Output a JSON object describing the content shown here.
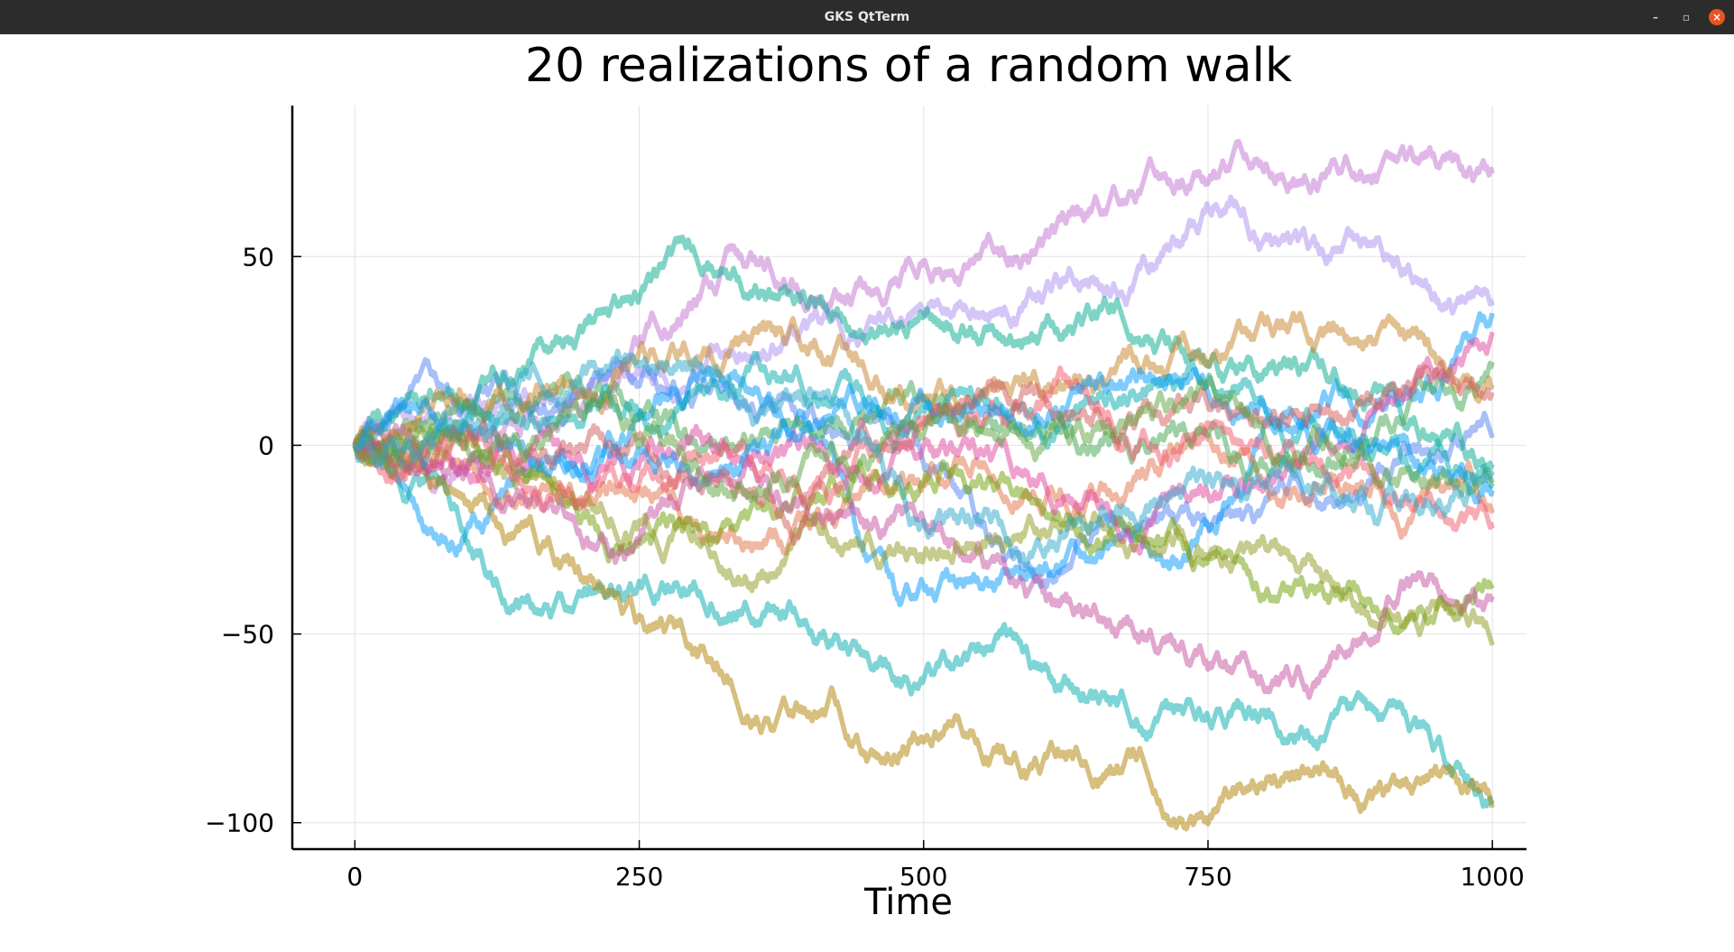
{
  "window": {
    "title": "GKS QtTerm",
    "controls": {
      "minimize": "–",
      "maximize": "▫",
      "close": "×"
    }
  },
  "chart_data": {
    "type": "line",
    "title": "20 realizations of a random walk",
    "xlabel": "Time",
    "ylabel": "",
    "xlim": [
      -55,
      1030
    ],
    "ylim": [
      -107,
      90
    ],
    "xticks": [
      0,
      250,
      500,
      750,
      1000
    ],
    "xtick_labels": [
      "0",
      "250",
      "500",
      "750",
      "1000"
    ],
    "yticks": [
      -100,
      -50,
      0,
      50
    ],
    "ytick_labels": [
      "−100",
      "−50",
      "0",
      "50"
    ],
    "grid": true,
    "legend": "none",
    "n_steps": 1000,
    "series": [
      {
        "color": "#c271d2",
        "endpoints": [
          [
            0,
            0
          ],
          [
            100,
            -5
          ],
          [
            200,
            10
          ],
          [
            330,
            52
          ],
          [
            370,
            42
          ],
          [
            470,
            42
          ],
          [
            500,
            48
          ],
          [
            560,
            53
          ],
          [
            700,
            75
          ],
          [
            900,
            72
          ],
          [
            1000,
            72
          ]
        ]
      },
      {
        "color": "#ac8eef",
        "endpoints": [
          [
            0,
            0
          ],
          [
            120,
            8
          ],
          [
            250,
            20
          ],
          [
            380,
            28
          ],
          [
            470,
            35
          ],
          [
            550,
            35
          ],
          [
            700,
            48
          ],
          [
            780,
            62
          ],
          [
            850,
            52
          ],
          [
            900,
            55
          ],
          [
            1000,
            37
          ]
        ]
      },
      {
        "color": "#4f82f0",
        "endpoints": [
          [
            0,
            0
          ],
          [
            50,
            15
          ],
          [
            150,
            10
          ],
          [
            260,
            20
          ],
          [
            400,
            10
          ],
          [
            500,
            -5
          ],
          [
            600,
            -35
          ],
          [
            700,
            -20
          ],
          [
            800,
            -15
          ],
          [
            900,
            -5
          ],
          [
            1000,
            2
          ]
        ]
      },
      {
        "color": "#009af9",
        "endpoints": [
          [
            0,
            0
          ],
          [
            60,
            -22
          ],
          [
            150,
            -8
          ],
          [
            300,
            18
          ],
          [
            400,
            5
          ],
          [
            480,
            -42
          ],
          [
            550,
            -38
          ],
          [
            650,
            -30
          ],
          [
            730,
            -30
          ],
          [
            850,
            12
          ],
          [
            1000,
            35
          ]
        ]
      },
      {
        "color": "#00a9ad",
        "endpoints": [
          [
            0,
            0
          ],
          [
            60,
            -10
          ],
          [
            120,
            -35
          ],
          [
            200,
            -40
          ],
          [
            300,
            -38
          ],
          [
            400,
            -50
          ],
          [
            500,
            -62
          ],
          [
            570,
            -48
          ],
          [
            620,
            -65
          ],
          [
            750,
            -72
          ],
          [
            870,
            -68
          ],
          [
            1000,
            -94
          ]
        ]
      },
      {
        "color": "#00a98d",
        "endpoints": [
          [
            0,
            0
          ],
          [
            100,
            10
          ],
          [
            200,
            30
          ],
          [
            320,
            45
          ],
          [
            380,
            40
          ],
          [
            450,
            28
          ],
          [
            500,
            35
          ],
          [
            600,
            27
          ],
          [
            700,
            28
          ],
          [
            800,
            20
          ],
          [
            900,
            15
          ],
          [
            1000,
            -10
          ]
        ]
      },
      {
        "color": "#e26f46",
        "endpoints": [
          [
            0,
            0
          ],
          [
            100,
            -5
          ],
          [
            200,
            -15
          ],
          [
            300,
            -20
          ],
          [
            400,
            -22
          ],
          [
            500,
            -10
          ],
          [
            600,
            -15
          ],
          [
            700,
            -5
          ],
          [
            800,
            -10
          ],
          [
            900,
            -10
          ],
          [
            1000,
            -18
          ]
        ]
      },
      {
        "color": "#3da44d",
        "endpoints": [
          [
            0,
            0
          ],
          [
            100,
            12
          ],
          [
            200,
            15
          ],
          [
            300,
            0
          ],
          [
            400,
            5
          ],
          [
            500,
            12
          ],
          [
            600,
            5
          ],
          [
            700,
            0
          ],
          [
            800,
            -5
          ],
          [
            900,
            5
          ],
          [
            1000,
            22
          ]
        ]
      },
      {
        "color": "#ad8000",
        "endpoints": [
          [
            0,
            0
          ],
          [
            100,
            -15
          ],
          [
            200,
            -35
          ],
          [
            250,
            -45
          ],
          [
            300,
            -55
          ],
          [
            380,
            -70
          ],
          [
            420,
            -65
          ],
          [
            460,
            -82
          ],
          [
            520,
            -75
          ],
          [
            600,
            -85
          ],
          [
            700,
            -90
          ],
          [
            740,
            -98
          ],
          [
            800,
            -90
          ],
          [
            850,
            -85
          ],
          [
            900,
            -90
          ],
          [
            1000,
            -96
          ]
        ]
      },
      {
        "color": "#6b9e00",
        "endpoints": [
          [
            0,
            0
          ],
          [
            120,
            -5
          ],
          [
            250,
            -25
          ],
          [
            350,
            -15
          ],
          [
            450,
            -10
          ],
          [
            520,
            -5
          ],
          [
            620,
            -20
          ],
          [
            700,
            -25
          ],
          [
            800,
            -40
          ],
          [
            900,
            -45
          ],
          [
            960,
            -42
          ],
          [
            1000,
            -38
          ]
        ]
      },
      {
        "color": "#e0449d",
        "endpoints": [
          [
            0,
            0
          ],
          [
            100,
            -8
          ],
          [
            200,
            -5
          ],
          [
            300,
            5
          ],
          [
            400,
            2
          ],
          [
            500,
            0
          ],
          [
            600,
            -10
          ],
          [
            700,
            -20
          ],
          [
            800,
            -10
          ],
          [
            900,
            10
          ],
          [
            1000,
            30
          ]
        ]
      },
      {
        "color": "#c44fa0",
        "endpoints": [
          [
            0,
            0
          ],
          [
            150,
            -15
          ],
          [
            250,
            -25
          ],
          [
            350,
            -5
          ],
          [
            450,
            -20
          ],
          [
            550,
            -28
          ],
          [
            620,
            -42
          ],
          [
            700,
            -50
          ],
          [
            780,
            -55
          ],
          [
            850,
            -60
          ],
          [
            920,
            -36
          ],
          [
            1000,
            -40
          ]
        ]
      },
      {
        "color": "#c68125",
        "endpoints": [
          [
            0,
            0
          ],
          [
            120,
            10
          ],
          [
            250,
            25
          ],
          [
            350,
            30
          ],
          [
            450,
            18
          ],
          [
            550,
            12
          ],
          [
            650,
            15
          ],
          [
            750,
            22
          ],
          [
            850,
            30
          ],
          [
            900,
            30
          ],
          [
            1000,
            16
          ]
        ]
      },
      {
        "color": "#00a9ad",
        "endpoints": [
          [
            0,
            0
          ],
          [
            100,
            10
          ],
          [
            200,
            5
          ],
          [
            300,
            15
          ],
          [
            400,
            12
          ],
          [
            500,
            10
          ],
          [
            600,
            5
          ],
          [
            700,
            15
          ],
          [
            800,
            10
          ],
          [
            900,
            0
          ],
          [
            1000,
            -5
          ]
        ]
      },
      {
        "color": "#8e971d",
        "endpoints": [
          [
            0,
            0
          ],
          [
            100,
            2
          ],
          [
            200,
            -15
          ],
          [
            300,
            -25
          ],
          [
            400,
            -20
          ],
          [
            500,
            -30
          ],
          [
            560,
            -25
          ],
          [
            650,
            -18
          ],
          [
            750,
            -30
          ],
          [
            850,
            -35
          ],
          [
            920,
            -48
          ],
          [
            1000,
            -53
          ]
        ]
      },
      {
        "color": "#ef5a6c",
        "endpoints": [
          [
            0,
            0
          ],
          [
            120,
            -3
          ],
          [
            250,
            -10
          ],
          [
            350,
            -5
          ],
          [
            450,
            0
          ],
          [
            550,
            5
          ],
          [
            650,
            10
          ],
          [
            750,
            5
          ],
          [
            850,
            -5
          ],
          [
            920,
            -15
          ],
          [
            1000,
            -22
          ]
        ]
      },
      {
        "color": "#009af9",
        "endpoints": [
          [
            0,
            0
          ],
          [
            120,
            5
          ],
          [
            250,
            -2
          ],
          [
            400,
            5
          ],
          [
            500,
            12
          ],
          [
            600,
            8
          ],
          [
            700,
            18
          ],
          [
            800,
            10
          ],
          [
            900,
            0
          ],
          [
            950,
            -8
          ],
          [
            1000,
            -12
          ]
        ]
      },
      {
        "color": "#d25a5a",
        "endpoints": [
          [
            0,
            0
          ],
          [
            100,
            5
          ],
          [
            200,
            0
          ],
          [
            300,
            -10
          ],
          [
            400,
            -15
          ],
          [
            500,
            5
          ],
          [
            600,
            15
          ],
          [
            700,
            10
          ],
          [
            800,
            5
          ],
          [
            900,
            10
          ],
          [
            1000,
            14
          ]
        ]
      },
      {
        "color": "#59a13d",
        "endpoints": [
          [
            0,
            0
          ],
          [
            100,
            -2
          ],
          [
            200,
            8
          ],
          [
            300,
            -5
          ],
          [
            400,
            0
          ],
          [
            500,
            3
          ],
          [
            600,
            -2
          ],
          [
            700,
            8
          ],
          [
            800,
            2
          ],
          [
            900,
            -10
          ],
          [
            1000,
            -10
          ]
        ]
      },
      {
        "color": "#2ba7c9",
        "endpoints": [
          [
            0,
            0
          ],
          [
            100,
            8
          ],
          [
            200,
            20
          ],
          [
            300,
            22
          ],
          [
            400,
            15
          ],
          [
            500,
            -20
          ],
          [
            600,
            -25
          ],
          [
            700,
            -15
          ],
          [
            800,
            -10
          ],
          [
            900,
            -20
          ],
          [
            1000,
            -8
          ]
        ]
      }
    ]
  }
}
